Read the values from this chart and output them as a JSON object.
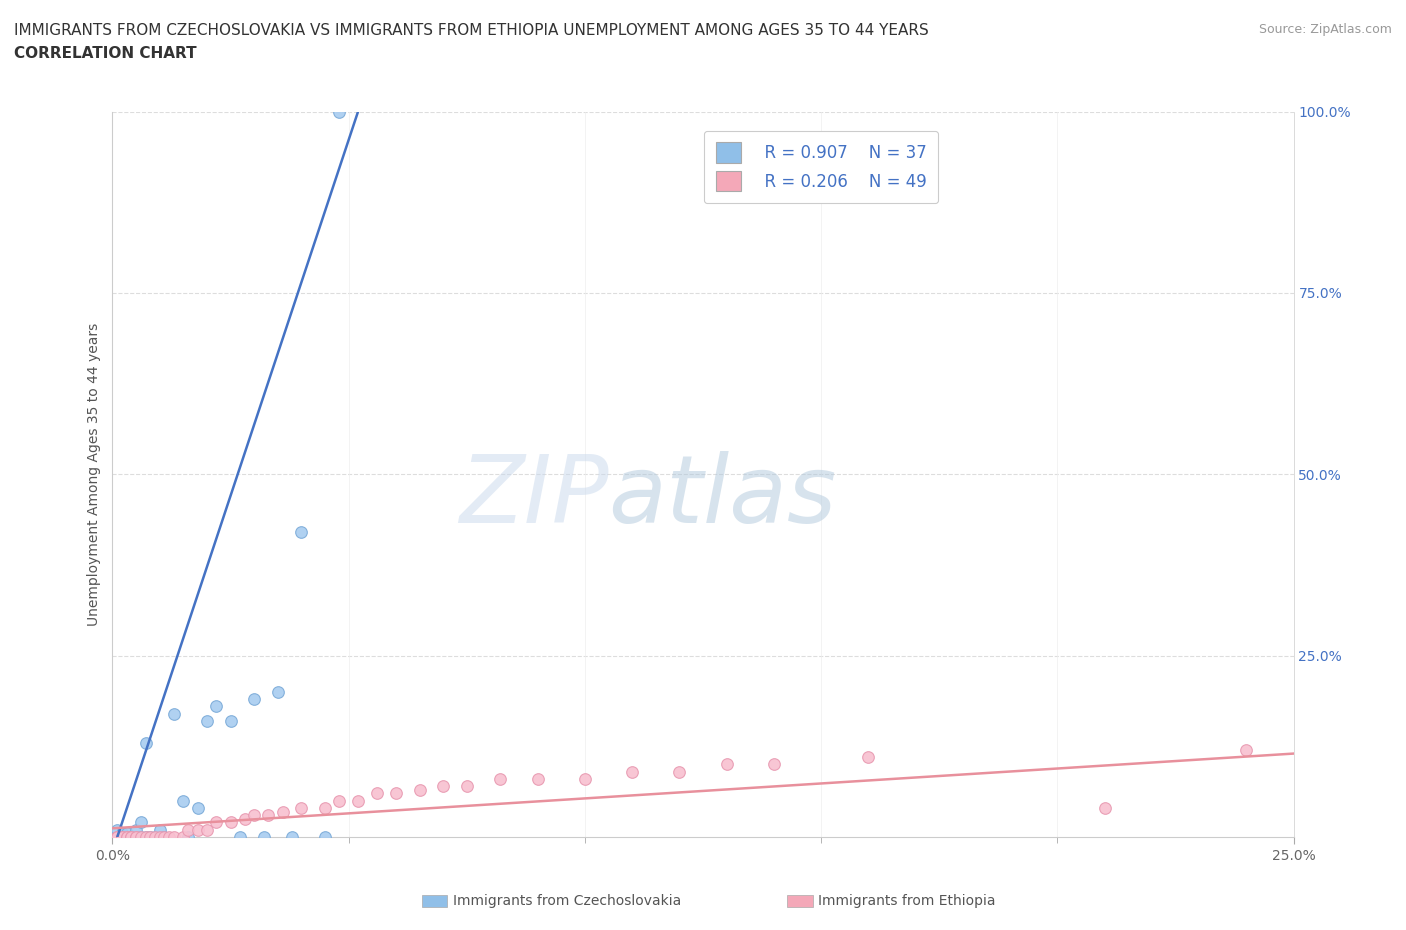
{
  "title_line1": "IMMIGRANTS FROM CZECHOSLOVAKIA VS IMMIGRANTS FROM ETHIOPIA UNEMPLOYMENT AMONG AGES 35 TO 44 YEARS",
  "title_line2": "CORRELATION CHART",
  "source": "Source: ZipAtlas.com",
  "ylabel": "Unemployment Among Ages 35 to 44 years",
  "xlim": [
    0.0,
    0.25
  ],
  "ylim": [
    0.0,
    1.0
  ],
  "background_color": "#ffffff",
  "grid_color": "#dddddd",
  "legend_R1": "R = 0.907",
  "legend_N1": "N = 37",
  "legend_R2": "R = 0.206",
  "legend_N2": "N = 49",
  "legend_color1": "#90bfe8",
  "legend_color2": "#f4a8b8",
  "text_color_blue": "#4472c4",
  "series1_name": "Immigrants from Czechoslovakia",
  "series2_name": "Immigrants from Ethiopia",
  "marker_color1": "#a8ccf0",
  "marker_edge1": "#7aaad8",
  "marker_color2": "#f8c0d0",
  "marker_edge2": "#e898b0",
  "line_color1": "#4472c4",
  "line_color2": "#e8909c",
  "czecho_x": [
    0.001,
    0.001,
    0.001,
    0.002,
    0.002,
    0.002,
    0.003,
    0.003,
    0.003,
    0.004,
    0.004,
    0.005,
    0.005,
    0.006,
    0.006,
    0.007,
    0.007,
    0.008,
    0.009,
    0.01,
    0.01,
    0.011,
    0.013,
    0.015,
    0.016,
    0.018,
    0.02,
    0.022,
    0.025,
    0.027,
    0.03,
    0.032,
    0.035,
    0.038,
    0.04,
    0.045,
    0.048
  ],
  "czecho_y": [
    0.0,
    0.0,
    0.01,
    0.0,
    0.0,
    0.005,
    0.0,
    0.0,
    0.005,
    0.0,
    0.0,
    0.0,
    0.01,
    0.0,
    0.02,
    0.0,
    0.13,
    0.0,
    0.0,
    0.0,
    0.01,
    0.0,
    0.17,
    0.05,
    0.0,
    0.04,
    0.16,
    0.18,
    0.16,
    0.0,
    0.19,
    0.0,
    0.2,
    0.0,
    0.42,
    0.0,
    1.0
  ],
  "ethiopia_x": [
    0.001,
    0.001,
    0.001,
    0.002,
    0.002,
    0.002,
    0.003,
    0.003,
    0.004,
    0.004,
    0.005,
    0.005,
    0.006,
    0.007,
    0.008,
    0.009,
    0.01,
    0.011,
    0.012,
    0.013,
    0.015,
    0.016,
    0.018,
    0.02,
    0.022,
    0.025,
    0.028,
    0.03,
    0.033,
    0.036,
    0.04,
    0.045,
    0.048,
    0.052,
    0.056,
    0.06,
    0.065,
    0.07,
    0.075,
    0.082,
    0.09,
    0.1,
    0.11,
    0.12,
    0.13,
    0.14,
    0.16,
    0.21,
    0.24
  ],
  "ethiopia_y": [
    0.0,
    0.0,
    0.0,
    0.0,
    0.0,
    0.0,
    0.0,
    0.0,
    0.0,
    0.0,
    0.0,
    0.0,
    0.0,
    0.0,
    0.0,
    0.0,
    0.0,
    0.0,
    0.0,
    0.0,
    0.0,
    0.01,
    0.01,
    0.01,
    0.02,
    0.02,
    0.025,
    0.03,
    0.03,
    0.035,
    0.04,
    0.04,
    0.05,
    0.05,
    0.06,
    0.06,
    0.065,
    0.07,
    0.07,
    0.08,
    0.08,
    0.08,
    0.09,
    0.09,
    0.1,
    0.1,
    0.11,
    0.04,
    0.12
  ],
  "czecho_line_x0": 0.0,
  "czecho_line_y0": -0.02,
  "czecho_line_x1": 0.053,
  "czecho_line_y1": 1.02,
  "ethiopia_line_x0": 0.0,
  "ethiopia_line_y0": 0.012,
  "ethiopia_line_x1": 0.25,
  "ethiopia_line_y1": 0.115,
  "title_fontsize": 11,
  "subtitle_fontsize": 11,
  "axis_label_fontsize": 10,
  "tick_fontsize": 10,
  "legend_fontsize": 12,
  "source_fontsize": 9
}
